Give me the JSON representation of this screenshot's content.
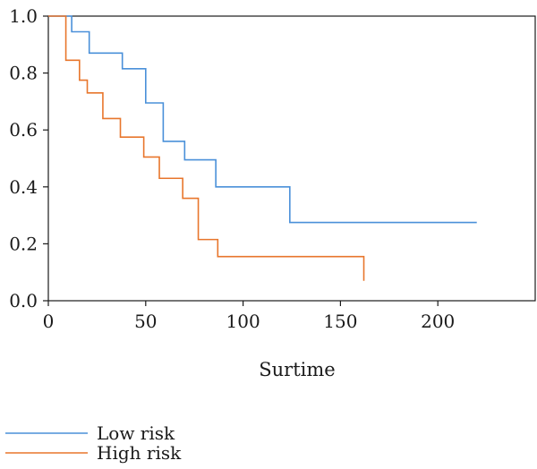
{
  "chart_data": {
    "type": "line",
    "xlabel": "Surtime",
    "ylabel": "",
    "xlim": [
      0,
      250
    ],
    "ylim": [
      0,
      1.0
    ],
    "xticks": [
      "0",
      "50",
      "100",
      "150",
      "200"
    ],
    "xtick_values": [
      0,
      50,
      100,
      150,
      200
    ],
    "yticks": [
      "0.0",
      "0.2",
      "0.4",
      "0.6",
      "0.8",
      "1.0"
    ],
    "ytick_values": [
      0,
      0.2,
      0.4,
      0.6,
      0.8,
      1.0
    ],
    "grid": false,
    "legend_position": "bottom-left",
    "series": [
      {
        "name": "Low risk",
        "color": "#4a90d9",
        "x": [
          0,
          12,
          21,
          38,
          50,
          59,
          70,
          86,
          124,
          220
        ],
        "y": [
          1.0,
          0.945,
          0.87,
          0.815,
          0.695,
          0.56,
          0.495,
          0.4,
          0.275,
          0.275
        ]
      },
      {
        "name": "High risk",
        "color": "#e8762c",
        "x": [
          0,
          9,
          16,
          20,
          28,
          37,
          49,
          57,
          69,
          77,
          87,
          162
        ],
        "y": [
          1.0,
          0.845,
          0.775,
          0.73,
          0.64,
          0.575,
          0.505,
          0.43,
          0.36,
          0.215,
          0.155,
          0.07
        ]
      }
    ]
  }
}
